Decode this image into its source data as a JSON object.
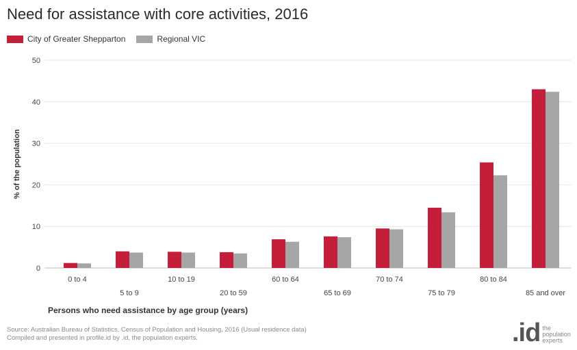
{
  "title": "Need for assistance with core activities, 2016",
  "chart_data": {
    "type": "bar",
    "categories": [
      "0 to 4",
      "5 to 9",
      "10 to 19",
      "20 to 59",
      "60 to 64",
      "65 to 69",
      "70 to 74",
      "75 to 79",
      "80 to 84",
      "85 and over"
    ],
    "series": [
      {
        "name": "City of Greater Shepparton",
        "color": "#c41e3a",
        "values": [
          1.2,
          4.0,
          3.9,
          3.8,
          6.9,
          7.6,
          9.5,
          14.5,
          25.4,
          43.0
        ]
      },
      {
        "name": "Regional VIC",
        "color": "#a6a6a6",
        "values": [
          1.1,
          3.7,
          3.7,
          3.5,
          6.3,
          7.4,
          9.3,
          13.4,
          22.3,
          42.4
        ]
      }
    ],
    "xlabel": "Persons who need assistance by age group (years)",
    "ylabel": "% of the population",
    "ylim": [
      0,
      50
    ],
    "yticks": [
      0,
      10,
      20,
      30,
      40,
      50
    ],
    "grid": true,
    "legend_position": "top-left"
  },
  "source_lines": [
    "Source: Australian Bureau of Statistics, Census of Population and Housing, 2016 (Usual residence data)",
    "Compiled and presented in profile.id by .id, the population experts."
  ],
  "logo": {
    "mark": ".id",
    "text": "the population experts"
  }
}
